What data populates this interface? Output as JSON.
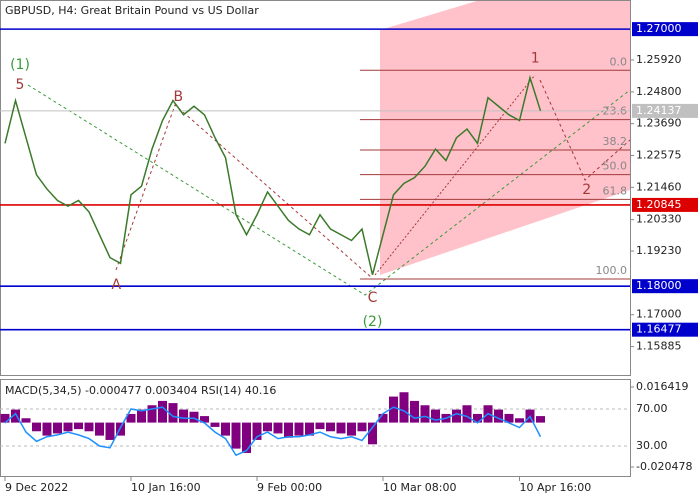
{
  "chart_data": [
    {
      "type": "line",
      "title": "GBPUSD, H4:  Great Britain Pound vs US Dollar",
      "categories": [
        "9 Dec 2022",
        null,
        null,
        null,
        null,
        null,
        null,
        null,
        null,
        null,
        null,
        null,
        "10 Jan 16:00",
        null,
        null,
        null,
        null,
        null,
        null,
        null,
        null,
        null,
        null,
        null,
        "9 Feb 00:00",
        null,
        null,
        null,
        null,
        null,
        null,
        null,
        null,
        null,
        null,
        null,
        "10 Mar 08:00",
        null,
        null,
        null,
        null,
        null,
        null,
        null,
        null,
        null,
        null,
        null,
        null,
        "10 Apr 16:00",
        null,
        null,
        null,
        null,
        null,
        null,
        null,
        null,
        null,
        null
      ],
      "values": [
        1.23,
        1.245,
        1.232,
        1.219,
        1.214,
        1.21,
        1.208,
        1.21,
        1.206,
        1.198,
        1.19,
        1.188,
        1.212,
        1.215,
        1.228,
        1.238,
        1.245,
        1.24,
        1.243,
        1.24,
        1.232,
        1.225,
        1.205,
        1.198,
        1.205,
        1.213,
        1.208,
        1.203,
        1.2,
        1.198,
        1.205,
        1.2,
        1.198,
        1.196,
        1.2,
        1.184,
        1.198,
        1.212,
        1.216,
        1.218,
        1.222,
        1.228,
        1.224,
        1.232,
        1.235,
        1.23,
        1.246,
        1.243,
        1.24,
        1.238,
        1.253,
        1.2414,
        null,
        null,
        null,
        null,
        null,
        null,
        null,
        null
      ],
      "color": "#3b7a2a",
      "ylim": [
        1.1489,
        1.2802
      ],
      "yticks": [
        {
          "value": 1.2592,
          "label": "1.25920"
        },
        {
          "value": 1.248,
          "label": "1.24800"
        },
        {
          "value": 1.2369,
          "label": "1.23690"
        },
        {
          "value": 1.22575,
          "label": "1.22575"
        },
        {
          "value": 1.2146,
          "label": "1.21460"
        },
        {
          "value": 1.2033,
          "label": "1.20330"
        },
        {
          "value": 1.1923,
          "label": "1.19230"
        },
        {
          "value": 1.17,
          "label": "1.17000"
        },
        {
          "value": 1.15885,
          "label": "1.15885"
        }
      ],
      "hlines": [
        {
          "value": 1.27,
          "label": "1.27000",
          "color": "#0000cc"
        },
        {
          "value": 1.24137,
          "label": "1.24137",
          "color": "#c0c0c0"
        },
        {
          "value": 1.20845,
          "label": "1.20845",
          "color": "#dd0000"
        },
        {
          "value": 1.18,
          "label": "1.18000",
          "color": "#0000cc"
        },
        {
          "value": 1.16477,
          "label": "1.16477",
          "color": "#0000cc"
        }
      ],
      "fib_levels": [
        {
          "value": 1.2556,
          "label": "0.0"
        },
        {
          "value": 1.2383,
          "label": "23.6"
        },
        {
          "value": 1.2277,
          "label": "38.2"
        },
        {
          "value": 1.21905,
          "label": "50.0"
        },
        {
          "value": 1.2104,
          "label": "61.8"
        },
        {
          "value": 1.1825,
          "label": "100.0"
        }
      ],
      "annotations": [
        {
          "text": "(1)",
          "x": 1.43,
          "y": 1.2574,
          "color": "#3a9a3a"
        },
        {
          "text": "5",
          "x": 1.43,
          "y": 1.2504,
          "color": "#a33a3a"
        },
        {
          "text": "B",
          "x": 16.5,
          "y": 1.2462,
          "color": "#a33a3a"
        },
        {
          "text": "A",
          "x": 10.6,
          "y": 1.1804,
          "color": "#a33a3a"
        },
        {
          "text": "C",
          "x": 35,
          "y": 1.1758,
          "color": "#a33a3a"
        },
        {
          "text": "(2)",
          "x": 35,
          "y": 1.1674,
          "color": "#3a9a3a"
        },
        {
          "text": "1",
          "x": 50.5,
          "y": 1.2598,
          "color": "#a33a3a"
        },
        {
          "text": "2",
          "x": 55.4,
          "y": 1.2136,
          "color": "#a33a3a"
        }
      ]
    },
    {
      "type": "combo",
      "title": "MACD(5,34,5) -0.000477 0.003404 RSI(14) 40.16",
      "series": [
        {
          "values": [
            0.004,
            0.006,
            0.002,
            -0.004,
            -0.006,
            -0.005,
            -0.004,
            -0.003,
            -0.004,
            -0.006,
            -0.008,
            -0.006,
            0.004,
            0.006,
            0.008,
            0.01,
            0.009,
            0.006,
            0.005,
            0.003,
            -0.002,
            -0.006,
            -0.012,
            -0.014,
            -0.008,
            -0.004,
            -0.005,
            -0.007,
            -0.006,
            -0.006,
            -0.003,
            -0.004,
            -0.005,
            -0.006,
            -0.004,
            -0.01,
            0.004,
            0.012,
            0.014,
            0.01,
            0.008,
            0.006,
            0.004,
            0.006,
            0.008,
            0.004,
            0.008,
            0.006,
            0.004,
            0.002,
            0.006,
            0.003,
            null,
            null,
            null,
            null,
            null,
            null,
            null,
            null
          ],
          "color": "#800080",
          "axis": "y2"
        },
        {
          "values": [
            55,
            65,
            45,
            35,
            40,
            42,
            45,
            42,
            38,
            30,
            28,
            50,
            70,
            68,
            70,
            72,
            62,
            60,
            60,
            55,
            45,
            38,
            20,
            25,
            40,
            45,
            38,
            40,
            40,
            42,
            45,
            40,
            38,
            40,
            36,
            50,
            65,
            72,
            68,
            60,
            62,
            58,
            60,
            65,
            62,
            55,
            65,
            60,
            55,
            50,
            62,
            40,
            null,
            null,
            null,
            null,
            null,
            null,
            null,
            null
          ],
          "color": "#1e90ff"
        }
      ],
      "ylim": [
        -1.4,
        101.4
      ],
      "yticks": [
        {
          "value": 70,
          "label": "70.00"
        },
        {
          "value": 30,
          "label": "30.00"
        }
      ],
      "y2lim": [
        -0.02417,
        0.01965
      ],
      "y2ticks": [
        0.016419,
        -0.020478
      ]
    }
  ]
}
